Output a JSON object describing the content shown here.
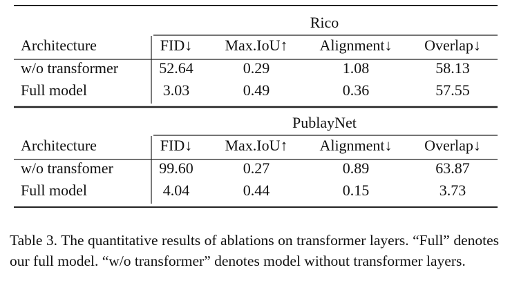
{
  "table": {
    "sections": [
      {
        "name": "Rico",
        "header": [
          "Architecture",
          "FID↓",
          "Max.IoU↑",
          "Alignment↓",
          "Overlap↓"
        ],
        "rows": [
          [
            "w/o transformer",
            "52.64",
            "0.29",
            "1.08",
            "58.13"
          ],
          [
            "Full model",
            "3.03",
            "0.49",
            "0.36",
            "57.55"
          ]
        ]
      },
      {
        "name": "PublayNet",
        "header": [
          "Architecture",
          "FID↓",
          "Max.IoU↑",
          "Alignment↓",
          "Overlap↓"
        ],
        "rows": [
          [
            "w/o transfomer",
            "99.60",
            "0.27",
            "0.89",
            "63.87"
          ],
          [
            "Full model",
            "4.04",
            "0.44",
            "0.15",
            "3.73"
          ]
        ]
      }
    ]
  },
  "caption": "Table 3. The quantitative results of ablations on transformer layers. “Full” denotes our full model. “w/o transformer” denotes model without transformer layers."
}
